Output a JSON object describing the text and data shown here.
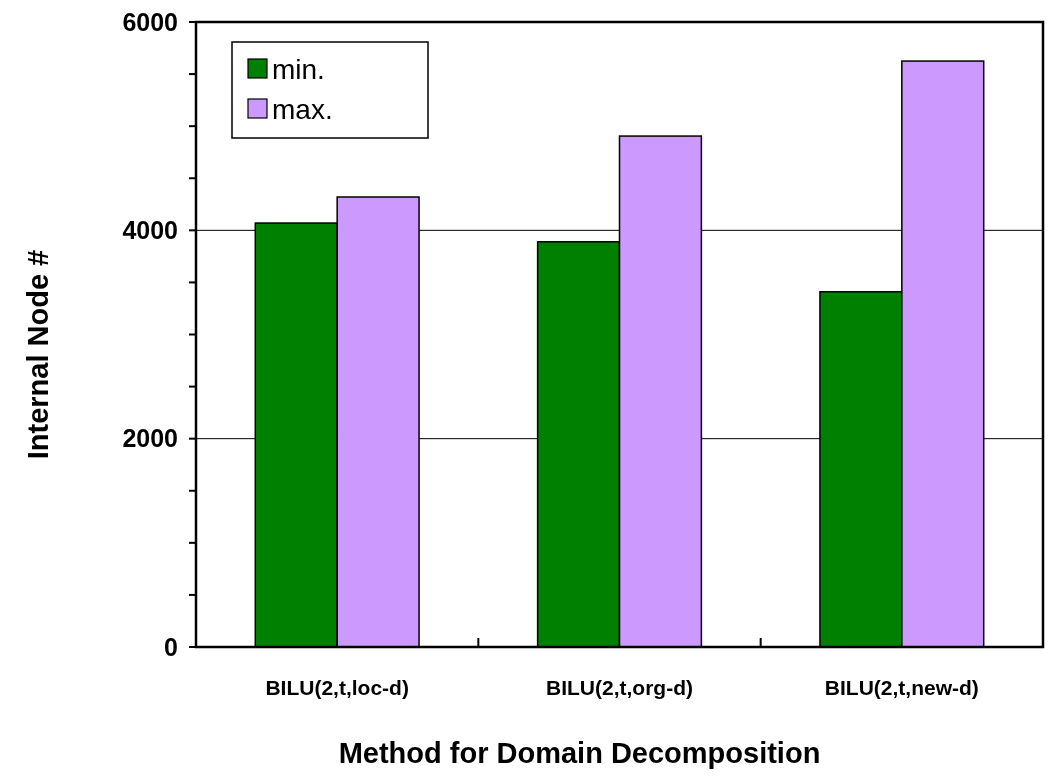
{
  "chart_data": {
    "type": "bar",
    "xlabel": "Method for Domain Decomposition",
    "ylabel": "Internal Node #",
    "categories": [
      "BILU(2,t,loc-d)",
      "BILU(2,t,org-d)",
      "BILU(2,t,new-d)"
    ],
    "series": [
      {
        "name": "min.",
        "color": "#008000",
        "values": [
          4070,
          3890,
          3410
        ]
      },
      {
        "name": "max.",
        "color": "#cc99ff",
        "values": [
          4320,
          4905,
          5625
        ]
      }
    ],
    "ylim": [
      0,
      6000
    ],
    "yticks": [
      0,
      {
        "value": 500,
        "label": null
      },
      {
        "value": 1000,
        "label": null
      },
      {
        "value": 1500,
        "label": null
      },
      2000,
      {
        "value": 2500,
        "label": null
      },
      {
        "value": 3000,
        "label": null
      },
      {
        "value": 3500,
        "label": null
      },
      4000,
      {
        "value": 4500,
        "label": null
      },
      {
        "value": 5000,
        "label": null
      },
      {
        "value": 5500,
        "label": null
      },
      6000
    ],
    "grid": "y",
    "legend": "top left"
  }
}
